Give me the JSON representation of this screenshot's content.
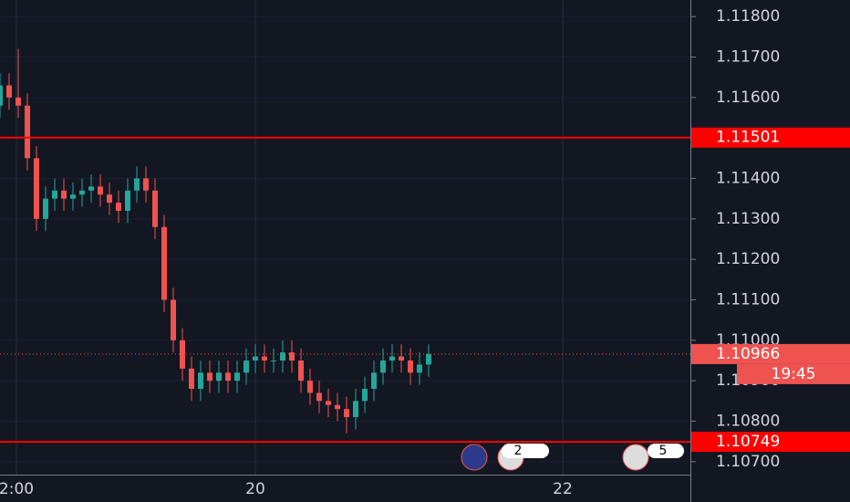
{
  "chart_data": {
    "type": "candlestick",
    "x": [
      0,
      2,
      4,
      6,
      8,
      10,
      12,
      14,
      16,
      18,
      20,
      22,
      24,
      26,
      28,
      30,
      32,
      34,
      36,
      38,
      40,
      42,
      44,
      46,
      48,
      50,
      52,
      54,
      56,
      58,
      60,
      62,
      64,
      66,
      68,
      70,
      72,
      74,
      76,
      78,
      80,
      82,
      84,
      86,
      88,
      90,
      92,
      94
    ],
    "open": [
      1.1158,
      1.1163,
      1.116,
      1.1158,
      1.1145,
      1.113,
      1.1135,
      1.1137,
      1.1135,
      1.1136,
      1.1137,
      1.1138,
      1.1136,
      1.1134,
      1.1132,
      1.1137,
      1.114,
      1.1137,
      1.1128,
      1.111,
      1.11,
      1.1093,
      1.1088,
      1.1092,
      1.109,
      1.1092,
      1.109,
      1.1092,
      1.1095,
      1.1096,
      1.1095,
      1.1095,
      1.1097,
      1.1095,
      1.109,
      1.1087,
      1.1085,
      1.1084,
      1.1083,
      1.1081,
      1.1085,
      1.1088,
      1.1092,
      1.1095,
      1.1096,
      1.1095,
      1.1092,
      1.1094
    ],
    "high": [
      1.1166,
      1.1166,
      1.1172,
      1.1161,
      1.1148,
      1.1138,
      1.114,
      1.114,
      1.1139,
      1.114,
      1.1141,
      1.1141,
      1.1139,
      1.1137,
      1.114,
      1.1143,
      1.1143,
      1.114,
      1.1131,
      1.1113,
      1.1103,
      1.1096,
      1.1095,
      1.1095,
      1.1095,
      1.1095,
      1.1095,
      1.1098,
      1.1099,
      1.1099,
      1.1098,
      1.11,
      1.11,
      1.1098,
      1.1093,
      1.109,
      1.1088,
      1.1087,
      1.1086,
      1.1088,
      1.1091,
      1.1095,
      1.1098,
      1.1099,
      1.1099,
      1.1098,
      1.1097,
      1.1099
    ],
    "low": [
      1.1155,
      1.1157,
      1.1155,
      1.1142,
      1.1127,
      1.1127,
      1.1132,
      1.1132,
      1.1132,
      1.1133,
      1.1134,
      1.1133,
      1.1131,
      1.1129,
      1.1129,
      1.1134,
      1.1134,
      1.1125,
      1.1107,
      1.1097,
      1.109,
      1.1085,
      1.1085,
      1.1087,
      1.1087,
      1.1087,
      1.1087,
      1.1089,
      1.1092,
      1.1092,
      1.1092,
      1.1092,
      1.1092,
      1.1087,
      1.1084,
      1.1082,
      1.1081,
      1.108,
      1.1077,
      1.1078,
      1.1082,
      1.1085,
      1.1089,
      1.1092,
      1.1092,
      1.1089,
      1.1089,
      1.1091
    ],
    "close": [
      1.1163,
      1.116,
      1.1158,
      1.1145,
      1.113,
      1.1135,
      1.1137,
      1.1135,
      1.1136,
      1.1137,
      1.1138,
      1.1136,
      1.1134,
      1.1132,
      1.1137,
      1.114,
      1.1137,
      1.1128,
      1.111,
      1.11,
      1.1093,
      1.1088,
      1.1092,
      1.109,
      1.1092,
      1.109,
      1.1092,
      1.1095,
      1.1096,
      1.1095,
      1.1095,
      1.1097,
      1.1095,
      1.109,
      1.1087,
      1.1085,
      1.1084,
      1.1083,
      1.1081,
      1.1085,
      1.1088,
      1.1092,
      1.1095,
      1.1096,
      1.1095,
      1.1092,
      1.1094,
      1.10966
    ],
    "up_color": "#26a69a",
    "down_color": "#ef5350",
    "xlim": [
      0,
      151.4
    ],
    "xticks": [
      {
        "value": 3.6,
        "label": "2:00"
      },
      {
        "value": 56,
        "label": "20"
      },
      {
        "value": 123.4,
        "label": "22"
      }
    ],
    "ylim": [
      1.10668,
      1.11841
    ],
    "yticks": [
      {
        "value": 1.118,
        "label": "1.11800"
      },
      {
        "value": 1.117,
        "label": "1.11700"
      },
      {
        "value": 1.116,
        "label": "1.11600"
      },
      {
        "value": 1.115,
        "label": "1.11500"
      },
      {
        "value": 1.114,
        "label": "1.11400"
      },
      {
        "value": 1.113,
        "label": "1.11300"
      },
      {
        "value": 1.112,
        "label": "1.11200"
      },
      {
        "value": 1.111,
        "label": "1.11100"
      },
      {
        "value": 1.11,
        "label": "1.11000"
      },
      {
        "value": 1.109,
        "label": "1.10900"
      },
      {
        "value": 1.108,
        "label": "1.10800"
      },
      {
        "value": 1.107,
        "label": "1.10700"
      }
    ],
    "grid": true,
    "price_lines": [
      {
        "value": 1.11501,
        "label": "1.11501",
        "color": "#ff0000"
      },
      {
        "value": 1.10749,
        "label": "1.10749",
        "color": "#ff0000"
      }
    ],
    "last_price": {
      "value": 1.10966,
      "label": "1.10966",
      "countdown": "19:45",
      "color": "#ef5350"
    },
    "events": [
      {
        "label": "2"
      },
      {
        "label": "5"
      }
    ]
  }
}
